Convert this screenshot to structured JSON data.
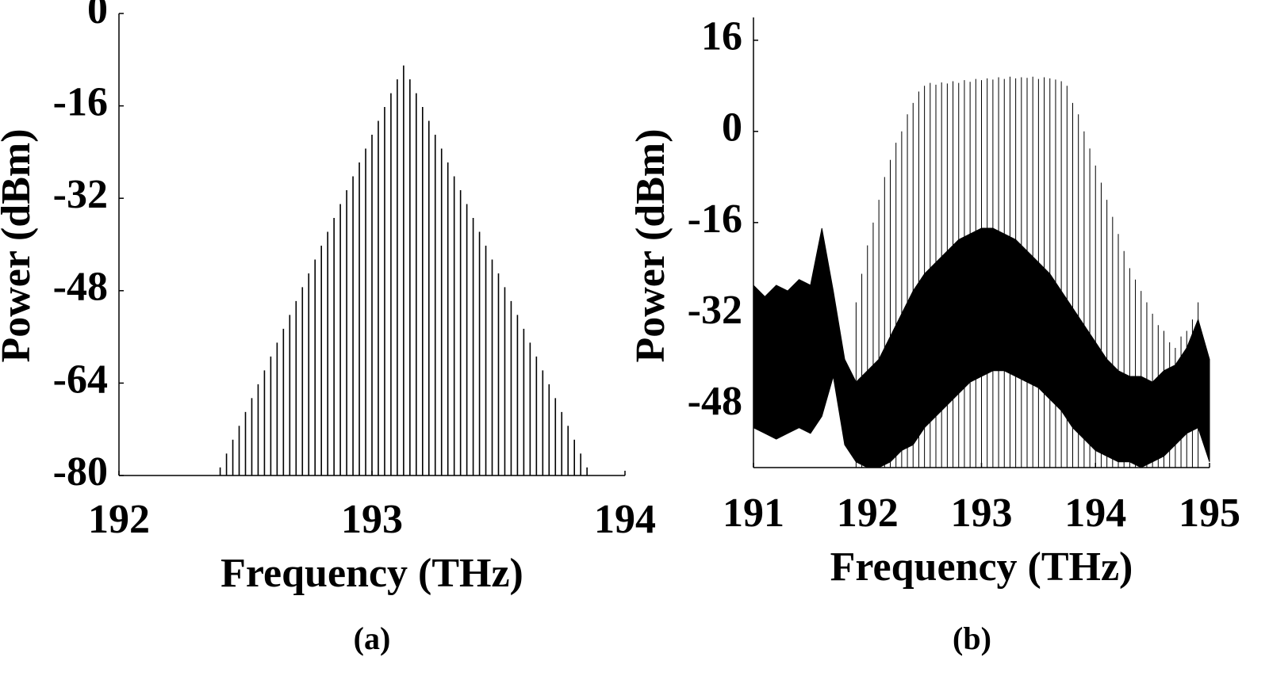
{
  "chart_data": [
    {
      "type": "stem",
      "caption": "(a)",
      "xlabel": "Frequency (THz)",
      "ylabel": "Power (dBm)",
      "xlim": [
        192,
        194
      ],
      "xticks": [
        192,
        193,
        194
      ],
      "ylim": [
        -80,
        0
      ],
      "yticks": [
        0,
        -16,
        -32,
        -48,
        -64,
        -80
      ],
      "x": [
        192.4,
        192.425,
        192.45,
        192.475,
        192.5,
        192.525,
        192.55,
        192.575,
        192.6,
        192.625,
        192.65,
        192.675,
        192.7,
        192.725,
        192.75,
        192.775,
        192.8,
        192.825,
        192.85,
        192.875,
        192.9,
        192.925,
        192.95,
        192.975,
        193.0,
        193.025,
        193.05,
        193.075,
        193.1,
        193.125,
        193.15,
        193.175,
        193.2,
        193.225,
        193.25,
        193.275,
        193.3,
        193.325,
        193.35,
        193.375,
        193.4,
        193.425,
        193.45,
        193.475,
        193.5,
        193.525,
        193.55,
        193.575,
        193.6,
        193.625,
        193.65,
        193.675,
        193.7,
        193.725,
        193.75,
        193.775,
        193.8,
        193.825,
        193.85
      ],
      "series": [
        {
          "color": "#000000",
          "values": [
            -78.6,
            -76.2,
            -73.8,
            -71.4,
            -69,
            -66.6,
            -64.2,
            -61.8,
            -59.4,
            -57,
            -54.6,
            -52.2,
            -49.8,
            -47.4,
            -45,
            -42.6,
            -40.2,
            -37.8,
            -35.4,
            -33,
            -30.6,
            -28.2,
            -25.8,
            -23.4,
            -21,
            -18.6,
            -16.2,
            -13.8,
            -11.4,
            -9,
            -11.4,
            -13.8,
            -16.2,
            -18.6,
            -21,
            -23.4,
            -25.8,
            -28.2,
            -30.6,
            -33,
            -35.4,
            -37.8,
            -40.2,
            -42.6,
            -45,
            -47.4,
            -49.8,
            -52.2,
            -54.6,
            -57,
            -59.4,
            -61.8,
            -64.2,
            -66.6,
            -69,
            -71.4,
            -73.8,
            -76.2,
            -78.6
          ]
        }
      ]
    },
    {
      "type": "stem",
      "caption": "(b)",
      "xlabel": "Frequency (THz)",
      "ylabel": "Power (dBm)",
      "xlim": [
        191,
        195
      ],
      "xticks": [
        191,
        192,
        193,
        194,
        195
      ],
      "ylim": [
        -59,
        20
      ],
      "yticks": [
        16,
        0,
        -16,
        -32,
        -48
      ],
      "x": [
        191.9,
        191.95,
        192.0,
        192.05,
        192.1,
        192.15,
        192.2,
        192.25,
        192.3,
        192.35,
        192.4,
        192.45,
        192.5,
        192.55,
        192.6,
        192.65,
        192.7,
        192.75,
        192.8,
        192.85,
        192.9,
        192.95,
        193.0,
        193.05,
        193.1,
        193.15,
        193.2,
        193.25,
        193.3,
        193.35,
        193.4,
        193.45,
        193.5,
        193.55,
        193.6,
        193.65,
        193.7,
        193.75,
        193.8,
        193.85,
        193.9,
        193.95,
        194.0,
        194.05,
        194.1,
        194.15,
        194.2,
        194.25,
        194.3,
        194.35,
        194.4,
        194.45,
        194.5,
        194.55,
        194.6,
        194.65,
        194.7,
        194.75,
        194.8,
        194.85,
        194.9
      ],
      "series": [
        {
          "color": "#000000",
          "values": [
            -30,
            -25,
            -20,
            -16,
            -12,
            -8,
            -5,
            -2,
            0,
            3,
            5,
            7,
            8,
            8.5,
            8.2,
            8.6,
            8.4,
            8.8,
            8.5,
            9,
            8.7,
            9.2,
            9,
            9.3,
            9.1,
            9.5,
            9.2,
            9.6,
            9.3,
            9.5,
            9.4,
            9.6,
            9.2,
            9.5,
            9.3,
            9.1,
            8.8,
            8,
            5,
            3,
            0,
            -3,
            -6,
            -9,
            -12,
            -15,
            -18,
            -21,
            -24,
            -26,
            -28,
            -30,
            -32,
            -34,
            -35,
            -37,
            -38,
            -36,
            -35,
            -33,
            -30
          ]
        }
      ],
      "band": {
        "color": "#000000",
        "x": [
          191.0,
          191.1,
          191.2,
          191.3,
          191.4,
          191.5,
          191.6,
          191.7,
          191.8,
          191.9,
          192.0,
          192.1,
          192.2,
          192.3,
          192.4,
          192.5,
          192.6,
          192.7,
          192.8,
          192.9,
          193.0,
          193.1,
          193.2,
          193.3,
          193.4,
          193.5,
          193.6,
          193.7,
          193.8,
          193.9,
          194.0,
          194.1,
          194.2,
          194.3,
          194.4,
          194.5,
          194.6,
          194.7,
          194.8,
          194.9,
          195.0
        ],
        "upper": [
          -27,
          -29,
          -27,
          -28,
          -26,
          -27,
          -17,
          -28,
          -40,
          -44,
          -42,
          -40,
          -36,
          -32,
          -28,
          -25,
          -23,
          -21,
          -19,
          -18,
          -17,
          -17,
          -18,
          -19,
          -21,
          -23,
          -25,
          -28,
          -31,
          -34,
          -37,
          -40,
          -42,
          -43,
          -43,
          -44,
          -42,
          -41,
          -38,
          -33,
          -40
        ],
        "lower": [
          -52,
          -53,
          -54,
          -53,
          -52,
          -53,
          -50,
          -43,
          -55,
          -58,
          -59,
          -59,
          -58,
          -56,
          -55,
          -52,
          -50,
          -48,
          -46,
          -44,
          -43,
          -42,
          -42,
          -43,
          -44,
          -45,
          -47,
          -49,
          -52,
          -54,
          -56,
          -57,
          -58,
          -58,
          -59,
          -58,
          -57,
          -55,
          -53,
          -52,
          -58
        ]
      }
    }
  ]
}
